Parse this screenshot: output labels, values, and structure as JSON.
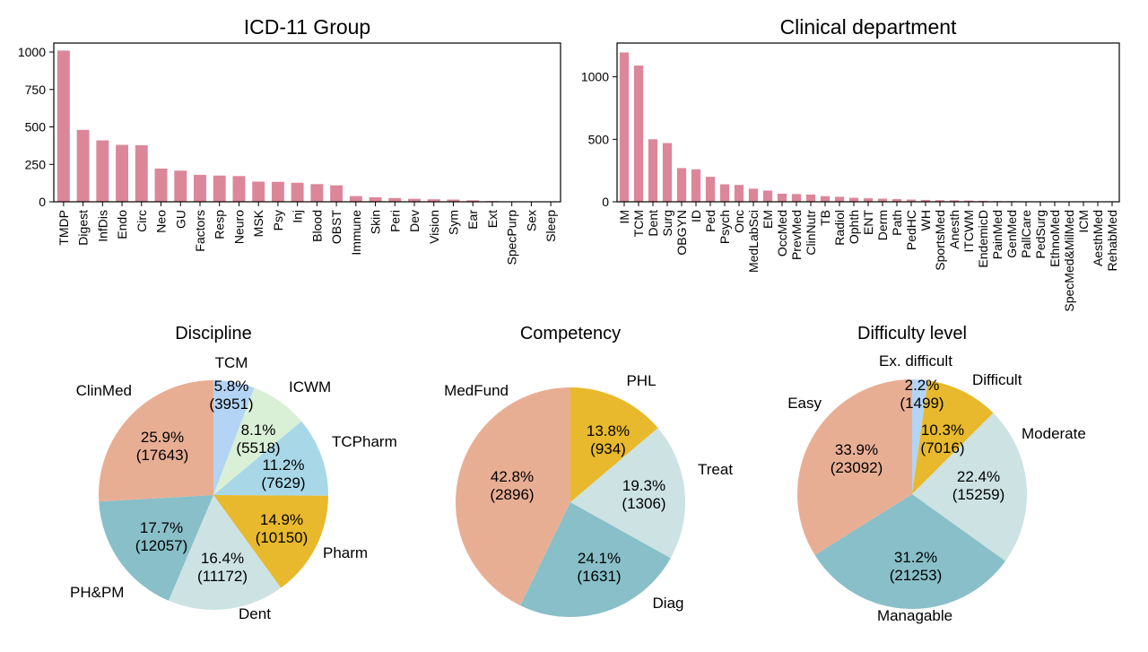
{
  "colors": {
    "bar": "#dc8799",
    "pie": {
      "ClinMed": "#e8ae94",
      "TCM": "#b3d4f5",
      "ICWM": "#d9f0d6",
      "TCPharm": "#a8d8e8",
      "Pharm": "#e8b92c",
      "Dent": "#cde2e3",
      "PH&PM": "#88bfc8",
      "MedFund": "#e8ae94",
      "PHL": "#e8b92c",
      "Treat": "#cde2e3",
      "Diag": "#88bfc8",
      "Easy": "#e8ae94",
      "Ex. difficult": "#b3d4f5",
      "Difficult": "#e8b92c",
      "Moderate": "#cde2e3",
      "Managable": "#88bfc8"
    }
  },
  "chart_data": [
    {
      "type": "bar",
      "title": "ICD-11 Group",
      "categories": [
        "TMDP",
        "Digest",
        "InfDis",
        "Endo",
        "Circ",
        "Neo",
        "GU",
        "Factors",
        "Resp",
        "Neuro",
        "MSK",
        "Psy",
        "Inj",
        "Blood",
        "OBST",
        "Immune",
        "Skin",
        "Peri",
        "Dev",
        "Vision",
        "Sym",
        "Ear",
        "Ext",
        "SpecPurp",
        "Sex",
        "Sleep"
      ],
      "values": [
        1010,
        480,
        410,
        380,
        378,
        222,
        208,
        180,
        175,
        172,
        135,
        133,
        127,
        118,
        110,
        38,
        30,
        25,
        20,
        17,
        15,
        10,
        5,
        2,
        1,
        1
      ],
      "yticks": [
        0,
        250,
        500,
        750,
        1000
      ],
      "ylim": [
        0,
        1060
      ]
    },
    {
      "type": "bar",
      "title": "Clinical department",
      "categories": [
        "IM",
        "TCM",
        "Dent",
        "Surg",
        "OBGYN",
        "ID",
        "Ped",
        "Psych",
        "Onc",
        "MedLabSci",
        "EM",
        "OccMed",
        "PrevMed",
        "ClinNutr",
        "TB",
        "Radiol",
        "Ophth",
        "ENT",
        "Derm",
        "Path",
        "PedHC",
        "WH",
        "SportsMed",
        "Anesth",
        "ITCWM",
        "EndemicD",
        "PainMed",
        "GenMed",
        "PallCare",
        "PedSurg",
        "EthnoMed",
        "SpecMed&MilMed",
        "ICM",
        "AesthMed",
        "RehabMed"
      ],
      "values": [
        1195,
        1090,
        500,
        470,
        270,
        260,
        200,
        140,
        135,
        105,
        90,
        65,
        62,
        58,
        45,
        40,
        32,
        28,
        25,
        22,
        18,
        15,
        13,
        12,
        10,
        8,
        6,
        5,
        4,
        3,
        2,
        2,
        1,
        1,
        1
      ],
      "yticks": [
        0,
        500,
        1000
      ],
      "ylim": [
        0,
        1270
      ]
    },
    {
      "type": "pie",
      "title": "Discipline",
      "slices": [
        {
          "label": "TCM",
          "pct": "5.8%",
          "count": "(3951)",
          "value": 3951
        },
        {
          "label": "ICWM",
          "pct": "8.1%",
          "count": "(5518)",
          "value": 5518
        },
        {
          "label": "TCPharm",
          "pct": "11.2%",
          "count": "(7629)",
          "value": 7629
        },
        {
          "label": "Pharm",
          "pct": "14.9%",
          "count": "(10150)",
          "value": 10150
        },
        {
          "label": "Dent",
          "pct": "16.4%",
          "count": "(11172)",
          "value": 11172
        },
        {
          "label": "PH&PM",
          "pct": "17.7%",
          "count": "(12057)",
          "value": 12057
        },
        {
          "label": "ClinMed",
          "pct": "25.9%",
          "count": "(17643)",
          "value": 17643
        }
      ]
    },
    {
      "type": "pie",
      "title": "Competency",
      "slices": [
        {
          "label": "PHL",
          "pct": "13.8%",
          "count": "(934)",
          "value": 934
        },
        {
          "label": "Treat",
          "pct": "19.3%",
          "count": "(1306)",
          "value": 1306
        },
        {
          "label": "Diag",
          "pct": "24.1%",
          "count": "(1631)",
          "value": 1631
        },
        {
          "label": "MedFund",
          "pct": "42.8%",
          "count": "(2896)",
          "value": 2896
        }
      ]
    },
    {
      "type": "pie",
      "title": "Difficulty level",
      "slices": [
        {
          "label": "Ex. difficult",
          "pct": "2.2%",
          "count": "(1499)",
          "value": 1499
        },
        {
          "label": "Difficult",
          "pct": "10.3%",
          "count": "(7016)",
          "value": 7016
        },
        {
          "label": "Moderate",
          "pct": "22.4%",
          "count": "(15259)",
          "value": 15259
        },
        {
          "label": "Managable",
          "pct": "31.2%",
          "count": "(21253)",
          "value": 21253
        },
        {
          "label": "Easy",
          "pct": "33.9%",
          "count": "(23092)",
          "value": 23092
        }
      ]
    }
  ]
}
